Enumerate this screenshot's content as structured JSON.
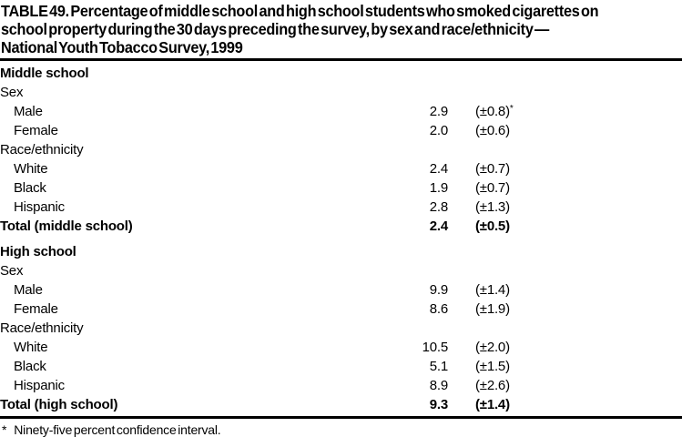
{
  "doc": {
    "title_lines": [
      "TABLE 49. Percentage of middle school and high school students who smoked cigarettes on",
      "school property during the 30 days preceding the survey, by sex and race/ethnicity —",
      "National Youth Tobacco Survey, 1999"
    ]
  },
  "table": {
    "rows": [
      {
        "label": "Middle school"
      },
      {
        "label": "Sex"
      },
      {
        "label": "Male",
        "value": "2.9",
        "ci": "(±0.8)",
        "marker": "*"
      },
      {
        "label": "Female",
        "value": "2.0",
        "ci": "(±0.6)"
      },
      {
        "label": "Race/ethnicity"
      },
      {
        "label": "White",
        "value": "2.4",
        "ci": "(±0.7)"
      },
      {
        "label": "Black",
        "value": "1.9",
        "ci": "(±0.7)"
      },
      {
        "label": "Hispanic",
        "value": "2.8",
        "ci": "(±1.3)"
      },
      {
        "label": "Total (middle school)",
        "value": "2.4",
        "ci": "(±0.5)"
      },
      {
        "label": "High school"
      },
      {
        "label": "Sex"
      },
      {
        "label": "Male",
        "value": "9.9",
        "ci": "(±1.4)"
      },
      {
        "label": "Female",
        "value": "8.6",
        "ci": "(±1.9)"
      },
      {
        "label": "Race/ethnicity"
      },
      {
        "label": "White",
        "value": "10.5",
        "ci": "(±2.0)"
      },
      {
        "label": "Black",
        "value": "5.1",
        "ci": "(±1.5)"
      },
      {
        "label": "Hispanic",
        "value": "8.9",
        "ci": "(±2.6)"
      },
      {
        "label": "Total (high school)",
        "value": "9.3",
        "ci": "(±1.4)"
      }
    ]
  },
  "footnote": {
    "marker": "*",
    "text": "Ninety-five percent confidence interval."
  }
}
